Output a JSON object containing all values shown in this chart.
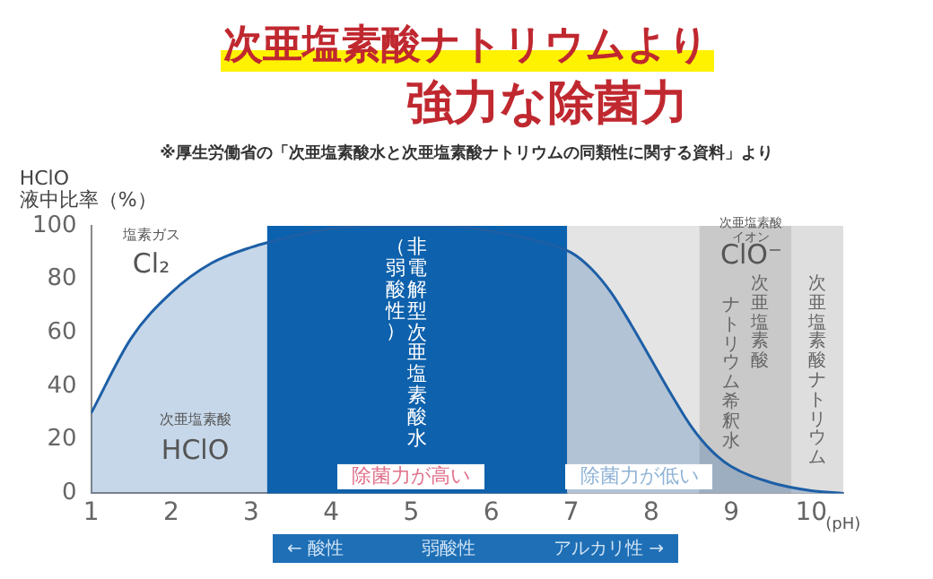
{
  "chart_data": {
    "type": "area",
    "title": "次亜塩素酸ナトリウムより",
    "subtitle": "強力な除菌力",
    "ylabel": "HClO\n液中比率（%）",
    "xlabel": "(pH)",
    "x": [
      1,
      1.5,
      2,
      2.5,
      3,
      3.5,
      4,
      4.5,
      5,
      5.5,
      6,
      6.5,
      7,
      7.25,
      7.5,
      7.75,
      8,
      8.25,
      8.5,
      8.75,
      9,
      9.5,
      10,
      10.4
    ],
    "series": [
      {
        "color": "#1d5fa6",
        "values": [
          30,
          58,
          75,
          86,
          92,
          96,
          99,
          100,
          100,
          100,
          98,
          95,
          90,
          84,
          75,
          63,
          50,
          37,
          25,
          16,
          10,
          4,
          1,
          0
        ]
      }
    ],
    "xlim": [
      1,
      10.4
    ],
    "xticks": [
      1,
      2,
      3,
      4,
      5,
      6,
      7,
      8,
      9,
      10
    ],
    "ylim": [
      0,
      100
    ],
    "yticks": [
      0,
      20,
      40,
      60,
      80,
      100
    ],
    "bands": [
      {
        "axis": "x",
        "from": 3.2,
        "to": 6.95,
        "label": "非電解型次亜塩素酸水",
        "color": "#0a62ae"
      },
      {
        "axis": "x",
        "from": 6.95,
        "to": 8.6,
        "color": "#e4e4e4"
      },
      {
        "axis": "x",
        "from": 8.6,
        "to": 9.75,
        "label": "次亜塩素酸ナトリウム希釈水",
        "color": "#c9c9c9"
      },
      {
        "axis": "x",
        "from": 9.75,
        "to": 10.4,
        "label": "次亜塩素酸ナトリウム",
        "color": "#dedede"
      }
    ],
    "annotations": [
      "※厚生労働省の「次亜塩素酸水と次亜塩素酸ナトリウムの同類性に関する資料」より",
      "← 酸性",
      "弱酸性",
      "アルカリ性 →",
      "塩素ガス",
      "Cl₂",
      "次亜塩素酸",
      "HClO",
      "次亜塩素酸イオン",
      "ClO⁻",
      "除菌力が高い",
      "除菌力が低い",
      "（弱酸性）"
    ],
    "grid": false
  }
}
